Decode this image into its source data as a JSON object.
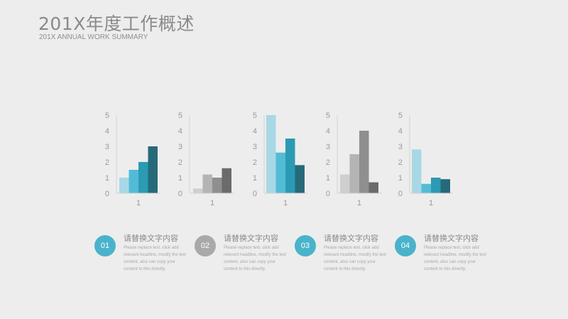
{
  "header": {
    "title": "201X年度工作概述",
    "subtitle": "201X ANNUAL WORK SUMMARY"
  },
  "colors": {
    "background": "#ededed",
    "teal_palette": [
      "#a8d8e6",
      "#52bcd6",
      "#2b9ab3",
      "#266a7a"
    ],
    "gray_palette": [
      "#cfcfcf",
      "#b4b4b4",
      "#8f8f8f",
      "#6b6b6b"
    ]
  },
  "chart_data": [
    {
      "type": "bar",
      "categories": [
        "1"
      ],
      "series": [
        {
          "values": [
            1
          ]
        },
        {
          "values": [
            1.5
          ]
        },
        {
          "values": [
            2
          ]
        },
        {
          "values": [
            3
          ]
        }
      ],
      "ylim": [
        0,
        5
      ],
      "yticks": [
        "0",
        "1",
        "2",
        "3",
        "4",
        "5"
      ],
      "palette": "teal"
    },
    {
      "type": "bar",
      "categories": [
        "1"
      ],
      "series": [
        {
          "values": [
            0.3
          ]
        },
        {
          "values": [
            1.2
          ]
        },
        {
          "values": [
            1
          ]
        },
        {
          "values": [
            1.6
          ]
        }
      ],
      "ylim": [
        0,
        5
      ],
      "yticks": [
        "0",
        "1",
        "2",
        "3",
        "4",
        "5"
      ],
      "palette": "gray"
    },
    {
      "type": "bar",
      "categories": [
        "1"
      ],
      "series": [
        {
          "values": [
            5
          ]
        },
        {
          "values": [
            2.6
          ]
        },
        {
          "values": [
            3.5
          ]
        },
        {
          "values": [
            1.8
          ]
        }
      ],
      "ylim": [
        0,
        5
      ],
      "yticks": [
        "0",
        "1",
        "2",
        "3",
        "4",
        "5"
      ],
      "palette": "teal"
    },
    {
      "type": "bar",
      "categories": [
        "1"
      ],
      "series": [
        {
          "values": [
            1.2
          ]
        },
        {
          "values": [
            2.5
          ]
        },
        {
          "values": [
            4
          ]
        },
        {
          "values": [
            0.7
          ]
        }
      ],
      "ylim": [
        0,
        5
      ],
      "yticks": [
        "0",
        "1",
        "2",
        "3",
        "4",
        "5"
      ],
      "palette": "gray"
    },
    {
      "type": "bar",
      "categories": [
        "1"
      ],
      "series": [
        {
          "values": [
            2.8
          ]
        },
        {
          "values": [
            0.6
          ]
        },
        {
          "values": [
            1
          ]
        },
        {
          "values": [
            0.9
          ]
        }
      ],
      "ylim": [
        0,
        5
      ],
      "yticks": [
        "0",
        "1",
        "2",
        "3",
        "4",
        "5"
      ],
      "palette": "teal"
    }
  ],
  "items": [
    {
      "number": "01",
      "heading": "请替换文字内容",
      "body": "Please replace text, click add relevant headline, modify the text content, also can copy your content to this directly.",
      "color": "#4ab3cb"
    },
    {
      "number": "02",
      "heading": "请替换文字内容",
      "body": "Please replace text, click add relevant headline, modify the text content, also can copy your content to this directly.",
      "color": "#a9a9a9"
    },
    {
      "number": "03",
      "heading": "请替换文字内容",
      "body": "Please replace text, click add relevant headline, modify the text content, also can copy your content to this directly.",
      "color": "#4ab3cb"
    },
    {
      "number": "04",
      "heading": "请替换文字内容",
      "body": "Please replace text, click add relevant headline, modify the text content, also can copy your content to this directly.",
      "color": "#4ab3cb"
    }
  ]
}
